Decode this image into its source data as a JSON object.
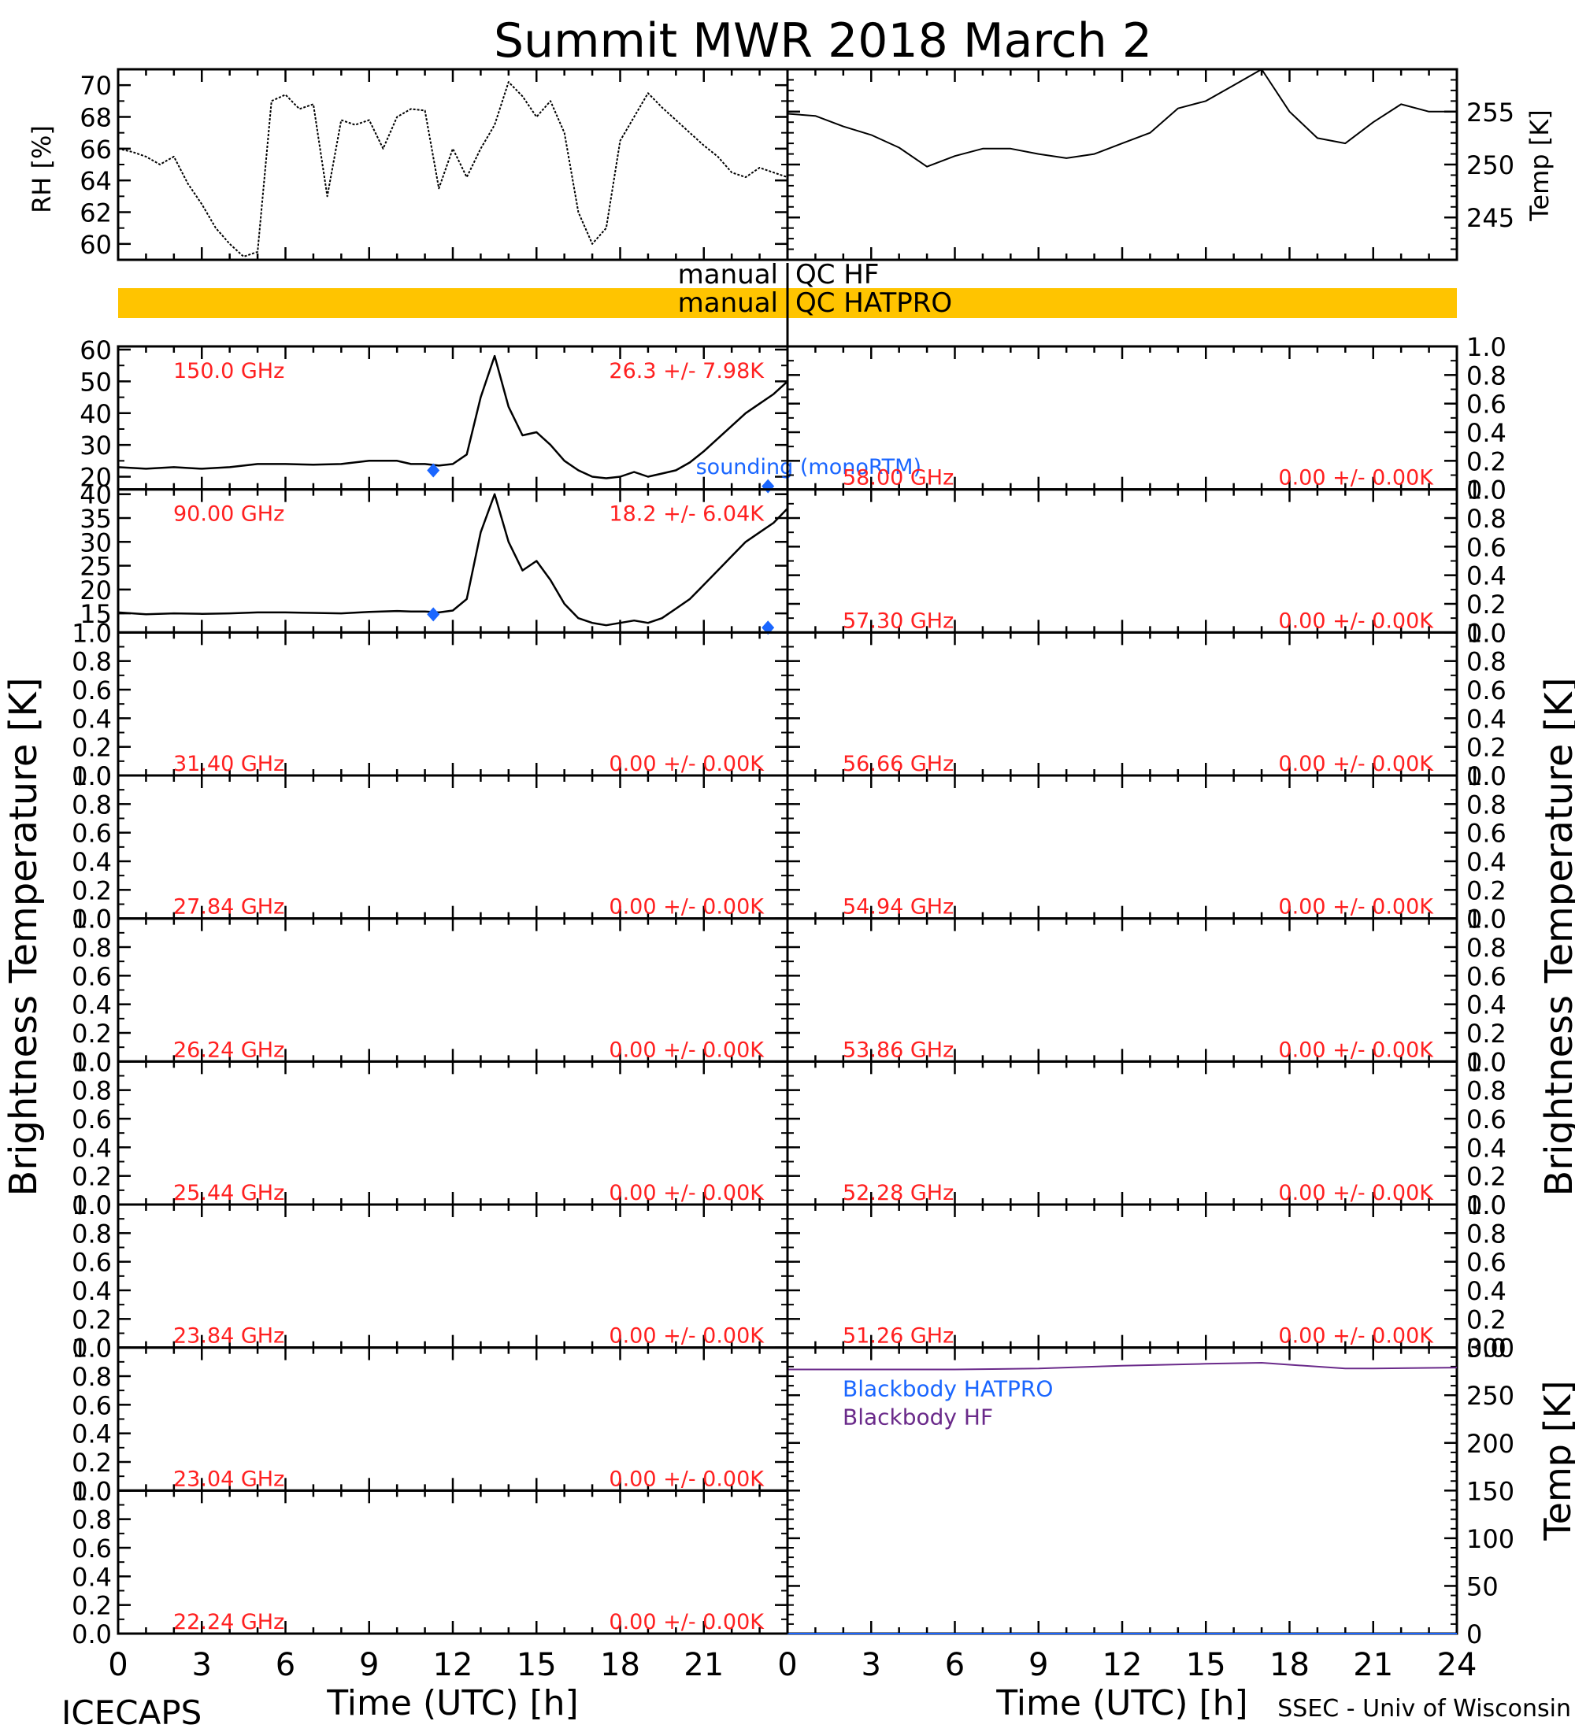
{
  "title": "Summit MWR 2018 March  2",
  "footer": {
    "left": "ICECAPS",
    "right": "SSEC - Univ of Wisconsin"
  },
  "qc": {
    "hf": {
      "manual": "manual",
      "label": "QC HF"
    },
    "hatpro": {
      "manual": "manual",
      "label": "QC HATPRO",
      "bar_color": "#ffc400"
    }
  },
  "colors": {
    "annotation": "#ff2020",
    "sounding": "#1a66ff",
    "blackbody_hatpro": "#1a66ff",
    "blackbody_hf": "#6a2a8a",
    "trace": "#000000"
  },
  "axes": {
    "time_label": "Time (UTC) [h]",
    "time_ticks": [
      "0",
      "3",
      "6",
      "9",
      "12",
      "15",
      "18",
      "21",
      "24"
    ],
    "bt_label": "Brightness Temperature [K]",
    "rh_label": "RH [%]",
    "temp_label": "Temp [K]"
  },
  "chart_data": [
    {
      "type": "line",
      "panel": "rh",
      "ylabel": "RH [%]",
      "xlim": [
        0,
        24
      ],
      "ylim": [
        59,
        71
      ],
      "yticks": [
        "60",
        "62",
        "64",
        "66",
        "68",
        "70"
      ],
      "x": [
        0,
        0.5,
        1,
        1.5,
        2,
        2.5,
        3,
        3.5,
        4,
        4.5,
        5,
        5.5,
        6,
        6.5,
        7,
        7.5,
        8,
        8.5,
        9,
        9.5,
        10,
        10.5,
        11,
        11.5,
        12,
        12.5,
        13,
        13.5,
        14,
        14.5,
        15,
        15.5,
        16,
        16.5,
        17,
        17.5,
        18,
        18.5,
        19,
        19.5,
        20,
        20.5,
        21,
        21.5,
        22,
        22.5,
        23,
        23.5,
        24
      ],
      "values": [
        66,
        65.8,
        65.5,
        65,
        65.5,
        63.8,
        62.5,
        61,
        60,
        59.2,
        59.5,
        69,
        69.4,
        68.5,
        68.8,
        63,
        67.8,
        67.5,
        67.8,
        66,
        68,
        68.5,
        68.4,
        63.5,
        66,
        64.2,
        66,
        67.5,
        70.2,
        69.3,
        68,
        69,
        67,
        62,
        60,
        61,
        66.5,
        68,
        69.5,
        68.6,
        67.8,
        67,
        66.2,
        65.5,
        64.5,
        64.2,
        64.8,
        64.5,
        64.2
      ]
    },
    {
      "type": "line",
      "panel": "surface-temp",
      "ylabel": "Temp [K]",
      "xlim": [
        0,
        24
      ],
      "ylim": [
        241,
        259
      ],
      "yticks": [
        "245",
        "250",
        "255"
      ],
      "x": [
        0,
        1,
        2,
        3,
        4,
        5,
        6,
        7,
        8,
        9,
        10,
        11,
        12,
        13,
        14,
        15,
        16,
        17,
        18,
        19,
        20,
        21,
        22,
        23,
        24
      ],
      "values": [
        254.8,
        254.6,
        253.6,
        252.8,
        251.6,
        249.8,
        250.8,
        251.5,
        251.5,
        251,
        250.6,
        251,
        252,
        253,
        255.3,
        256,
        257.5,
        259,
        255,
        252.5,
        252,
        254,
        255.7,
        255,
        255
      ]
    },
    {
      "type": "line",
      "panel": "tb-150",
      "frequency": "150.0 GHz",
      "stats": "26.3 +/-  7.98K",
      "sounding_label": "sounding (monoRTM)",
      "xlim": [
        0,
        24
      ],
      "ylim": [
        16,
        61
      ],
      "yticks": [
        "20",
        "30",
        "40",
        "50",
        "60"
      ],
      "x": [
        0,
        1,
        2,
        3,
        4,
        5,
        6,
        7,
        8,
        9,
        10,
        10.5,
        11,
        11.5,
        12,
        12.5,
        13,
        13.5,
        14,
        14.5,
        15,
        15.5,
        16,
        16.5,
        17,
        17.5,
        18,
        18.5,
        19,
        19.5,
        20,
        20.5,
        21,
        21.5,
        22,
        22.5,
        23,
        23.5,
        24
      ],
      "values": [
        23,
        22.5,
        23,
        22.5,
        23,
        24,
        24,
        23.8,
        24,
        25,
        25,
        24,
        24,
        23.5,
        24,
        27,
        45,
        58,
        42,
        33,
        34,
        30,
        25,
        22,
        20,
        19.5,
        20,
        21.5,
        20,
        21,
        22,
        24.5,
        28,
        32,
        36,
        40,
        43,
        46,
        50
      ],
      "sounding_points": {
        "x": [
          11.3,
          23.3
        ],
        "values": [
          22,
          17
        ]
      }
    },
    {
      "type": "line",
      "panel": "tb-90",
      "frequency": "90.00 GHz",
      "stats": "18.2 +/-  6.04K",
      "xlim": [
        0,
        24
      ],
      "ylim": [
        11,
        41
      ],
      "yticks": [
        "15",
        "20",
        "25",
        "30",
        "35",
        "40"
      ],
      "x": [
        0,
        1,
        2,
        3,
        4,
        5,
        6,
        7,
        8,
        9,
        10,
        10.5,
        11,
        11.5,
        12,
        12.5,
        13,
        13.5,
        14,
        14.5,
        15,
        15.5,
        16,
        16.5,
        17,
        17.5,
        18,
        18.5,
        19,
        19.5,
        20,
        20.5,
        21,
        21.5,
        22,
        22.5,
        23,
        23.5,
        24
      ],
      "values": [
        15.2,
        14.8,
        15,
        14.9,
        15,
        15.2,
        15.2,
        15.1,
        15,
        15.3,
        15.5,
        15.4,
        15.4,
        15.2,
        15.6,
        18,
        32,
        40,
        30,
        24,
        26,
        22,
        17,
        14,
        13,
        12.5,
        13,
        13.5,
        13,
        14,
        16,
        18,
        21,
        24,
        27,
        30,
        32,
        34,
        37
      ],
      "sounding_points": {
        "x": [
          11.3,
          23.3
        ],
        "values": [
          14.8,
          12
        ]
      }
    },
    {
      "type": "line",
      "panel": "blackbody",
      "ylabel": "Temp [K]",
      "xlim": [
        0,
        24
      ],
      "ylim": [
        0,
        300
      ],
      "yticks": [
        "0",
        "50",
        "100",
        "150",
        "200",
        "250",
        "300"
      ],
      "legend": [
        "Blackbody HATPRO",
        "Blackbody HF"
      ],
      "series": [
        {
          "name": "Blackbody HF",
          "x": [
            0,
            3,
            6,
            9,
            12,
            15,
            17,
            18,
            20,
            21,
            24
          ],
          "values": [
            277,
            277,
            277,
            278,
            281,
            283,
            284,
            282,
            278,
            278,
            279
          ]
        },
        {
          "name": "Blackbody HATPRO",
          "x": [
            0,
            24
          ],
          "values": [
            0,
            0
          ]
        }
      ]
    }
  ],
  "empty_channels": {
    "yticks": [
      "0.0",
      "0.2",
      "0.4",
      "0.6",
      "0.8",
      "1.0"
    ],
    "stats": "0.00 +/-  0.00K",
    "left": [
      "31.40 GHz",
      "27.84 GHz",
      "26.24 GHz",
      "25.44 GHz",
      "23.84 GHz",
      "23.04 GHz",
      "22.24 GHz"
    ],
    "right": [
      "58.00 GHz",
      "57.30 GHz",
      "56.66 GHz",
      "54.94 GHz",
      "53.86 GHz",
      "52.28 GHz",
      "51.26 GHz"
    ]
  }
}
